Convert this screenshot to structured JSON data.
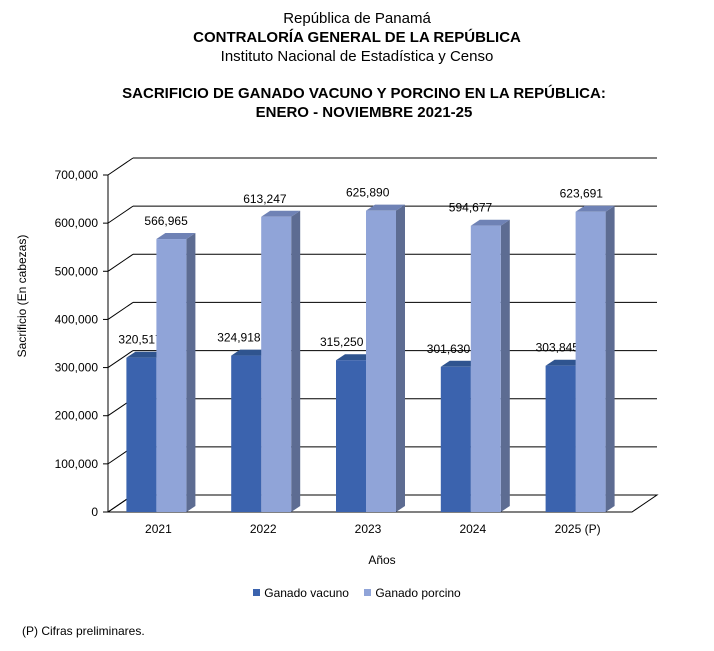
{
  "header": {
    "line1": "República de Panamá",
    "line2": "CONTRALORÍA GENERAL DE LA REPÚBLICA",
    "line3": "Instituto Nacional de Estadística y Censo"
  },
  "footnote": "(P) Cifras preliminares.",
  "colors": {
    "vacuno_front": "#3B63AE",
    "vacuno_side": "#2B4A86",
    "vacuno_top": "#2F548F",
    "porcino_front": "#90A4D8",
    "porcino_side": "#5D6C92",
    "porcino_top": "#6F82B5"
  },
  "chart_data": {
    "type": "bar",
    "title_lines": [
      "SACRIFICIO DE GANADO VACUNO Y PORCINO EN LA REPÚBLICA:",
      "ENERO - NOVIEMBRE 2021-25"
    ],
    "xlabel": "Años",
    "ylabel": "Sacrificio (En cabezas)",
    "categories": [
      "2021",
      "2022",
      "2023",
      "2024",
      "2025 (P)"
    ],
    "series": [
      {
        "name": "Ganado vacuno",
        "values": [
          320517,
          324918,
          315250,
          301630,
          303845
        ],
        "labels": [
          "320,517",
          "324,918",
          "315,250",
          "301,630",
          "303,845"
        ]
      },
      {
        "name": "Ganado porcino",
        "values": [
          566965,
          613247,
          625890,
          594677,
          623691
        ],
        "labels": [
          "566,965",
          "613,247",
          "625,890",
          "594,677",
          "623,691"
        ]
      }
    ],
    "ylim": [
      0,
      700000
    ],
    "yticks": [
      0,
      100000,
      200000,
      300000,
      400000,
      500000,
      600000,
      700000
    ],
    "ytick_labels": [
      "0",
      "100,000",
      "200,000",
      "300,000",
      "400,000",
      "500,000",
      "600,000",
      "700,000"
    ],
    "grid": true,
    "three_d": true,
    "legend_position": "bottom"
  }
}
